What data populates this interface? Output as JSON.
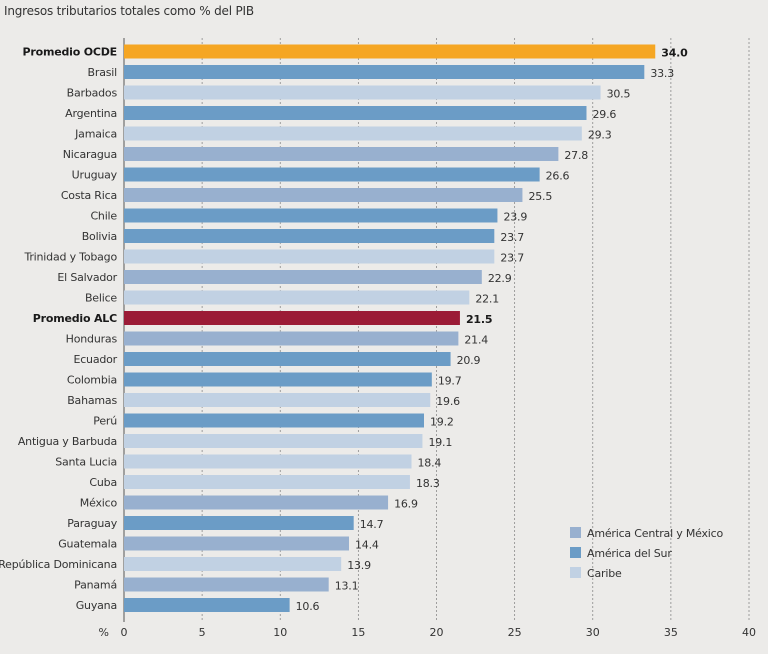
{
  "chart_data": {
    "type": "bar",
    "orientation": "horizontal",
    "title": "Ingresos tributarios totales como % del PIB",
    "xlabel": "%",
    "xlim": [
      0,
      40
    ],
    "xticks": [
      0,
      5,
      10,
      15,
      20,
      25,
      30,
      35,
      40
    ],
    "grid": "vertical dashed",
    "legend_position": "bottom-right",
    "colors": {
      "ocde": "#f5a623",
      "alc": "#9b1b36",
      "central": "#98b0cf",
      "sur": "#6b9cc6",
      "caribe": "#c1d1e3"
    },
    "legend": [
      {
        "label": "América Central y México",
        "group": "central"
      },
      {
        "label": "América del Sur",
        "group": "sur"
      },
      {
        "label": "Caribe",
        "group": "caribe"
      }
    ],
    "bars": [
      {
        "label": "Promedio OCDE",
        "value": 34.0,
        "group": "ocde",
        "bold": true
      },
      {
        "label": "Brasil",
        "value": 33.3,
        "group": "sur"
      },
      {
        "label": "Barbados",
        "value": 30.5,
        "group": "caribe"
      },
      {
        "label": "Argentina",
        "value": 29.6,
        "group": "sur"
      },
      {
        "label": "Jamaica",
        "value": 29.3,
        "group": "caribe"
      },
      {
        "label": "Nicaragua",
        "value": 27.8,
        "group": "central"
      },
      {
        "label": "Uruguay",
        "value": 26.6,
        "group": "sur"
      },
      {
        "label": "Costa Rica",
        "value": 25.5,
        "group": "central"
      },
      {
        "label": "Chile",
        "value": 23.9,
        "group": "sur"
      },
      {
        "label": "Bolivia",
        "value": 23.7,
        "group": "sur"
      },
      {
        "label": "Trinidad y Tobago",
        "value": 23.7,
        "group": "caribe"
      },
      {
        "label": "El Salvador",
        "value": 22.9,
        "group": "central"
      },
      {
        "label": "Belice",
        "value": 22.1,
        "group": "caribe"
      },
      {
        "label": "Promedio ALC",
        "value": 21.5,
        "group": "alc",
        "bold": true
      },
      {
        "label": "Honduras",
        "value": 21.4,
        "group": "central"
      },
      {
        "label": "Ecuador",
        "value": 20.9,
        "group": "sur"
      },
      {
        "label": "Colombia",
        "value": 19.7,
        "group": "sur"
      },
      {
        "label": "Bahamas",
        "value": 19.6,
        "group": "caribe"
      },
      {
        "label": "Perú",
        "value": 19.2,
        "group": "sur"
      },
      {
        "label": "Antigua y Barbuda",
        "value": 19.1,
        "group": "caribe"
      },
      {
        "label": "Santa Lucia",
        "value": 18.4,
        "group": "caribe"
      },
      {
        "label": "Cuba",
        "value": 18.3,
        "group": "caribe"
      },
      {
        "label": "México",
        "value": 16.9,
        "group": "central"
      },
      {
        "label": "Paraguay",
        "value": 14.7,
        "group": "sur"
      },
      {
        "label": "Guatemala",
        "value": 14.4,
        "group": "central"
      },
      {
        "label": "República Dominicana",
        "value": 13.9,
        "group": "caribe"
      },
      {
        "label": "Panamá",
        "value": 13.1,
        "group": "central"
      },
      {
        "label": "Guyana",
        "value": 10.6,
        "group": "sur"
      }
    ]
  }
}
